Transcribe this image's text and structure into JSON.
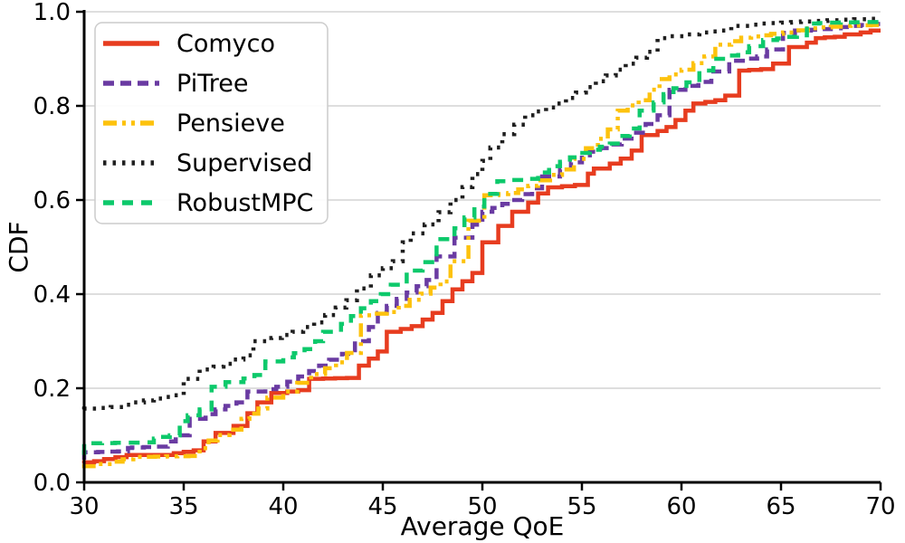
{
  "figure": {
    "background": "#ffffff",
    "grid_color": "#c9c9c9",
    "spine_color": "#000000",
    "legend_border_color": "#cccccc",
    "legend_background": "#ffffff"
  },
  "chart_data": {
    "type": "line",
    "subtype": "empirical_cdf_steps",
    "title": "",
    "xlabel": "Average QoE",
    "ylabel": "CDF",
    "xlim": [
      30,
      70
    ],
    "ylim": [
      0.0,
      1.0
    ],
    "x_ticks": [
      30,
      35,
      40,
      45,
      50,
      55,
      60,
      65,
      70
    ],
    "y_ticks": [
      "0.0",
      "0.2",
      "0.4",
      "0.6",
      "0.8",
      "1.0"
    ],
    "grid": "horizontal",
    "legend_position": "upper-left",
    "dash_patterns": {
      "solid": "",
      "dashed": "12 7",
      "dashdotdot": "15 6 4 6 4 6",
      "dotted": "3.5 7",
      "dashed_long": "12 9"
    },
    "series": [
      {
        "name": "Comyco",
        "color": "#e73c1f",
        "dash": "solid",
        "width": 4.5,
        "points": [
          [
            30,
            0.04
          ],
          [
            31,
            0.045
          ],
          [
            32.7,
            0.058
          ],
          [
            34.5,
            0.058
          ],
          [
            35,
            0.062
          ],
          [
            36,
            0.068
          ],
          [
            36.6,
            0.087
          ],
          [
            37.5,
            0.105
          ],
          [
            38.2,
            0.12
          ],
          [
            38.7,
            0.147
          ],
          [
            39.4,
            0.17
          ],
          [
            40.2,
            0.19
          ],
          [
            41.3,
            0.196
          ],
          [
            42,
            0.22
          ],
          [
            43.8,
            0.222
          ],
          [
            44.3,
            0.248
          ],
          [
            45.2,
            0.278
          ],
          [
            45.9,
            0.32
          ],
          [
            47,
            0.332
          ],
          [
            48,
            0.36
          ],
          [
            49,
            0.41
          ],
          [
            50,
            0.445
          ],
          [
            50.8,
            0.51
          ],
          [
            51.5,
            0.545
          ],
          [
            52.3,
            0.575
          ],
          [
            53.3,
            0.614
          ],
          [
            54,
            0.627
          ],
          [
            55.3,
            0.632
          ],
          [
            55.6,
            0.656
          ],
          [
            56.4,
            0.667
          ],
          [
            57.5,
            0.688
          ],
          [
            58,
            0.705
          ],
          [
            58.8,
            0.738
          ],
          [
            59.7,
            0.755
          ],
          [
            60.2,
            0.77
          ],
          [
            60.6,
            0.79
          ],
          [
            61.2,
            0.805
          ],
          [
            62.2,
            0.812
          ],
          [
            62.9,
            0.822
          ],
          [
            63.4,
            0.875
          ],
          [
            64.6,
            0.878
          ],
          [
            65.4,
            0.89
          ],
          [
            66.3,
            0.925
          ],
          [
            67.2,
            0.944
          ],
          [
            68.2,
            0.947
          ],
          [
            69,
            0.952
          ],
          [
            70,
            0.96
          ]
        ]
      },
      {
        "name": "PiTree",
        "color": "#6a3ba2",
        "dash": "dashed",
        "width": 4.5,
        "points": [
          [
            30,
            0.048
          ],
          [
            30.7,
            0.064
          ],
          [
            32.2,
            0.066
          ],
          [
            32.4,
            0.073
          ],
          [
            34.2,
            0.076
          ],
          [
            34.6,
            0.087
          ],
          [
            35.3,
            0.1
          ],
          [
            36.1,
            0.135
          ],
          [
            37.1,
            0.155
          ],
          [
            38.2,
            0.17
          ],
          [
            39.1,
            0.193
          ],
          [
            40.2,
            0.203
          ],
          [
            41.3,
            0.225
          ],
          [
            42.3,
            0.248
          ],
          [
            43.6,
            0.273
          ],
          [
            44.3,
            0.3
          ],
          [
            45.2,
            0.36
          ],
          [
            46.2,
            0.39
          ],
          [
            47.7,
            0.43
          ],
          [
            48.6,
            0.48
          ],
          [
            49.5,
            0.52
          ],
          [
            50.5,
            0.575
          ],
          [
            52,
            0.6
          ],
          [
            53,
            0.625
          ],
          [
            53.9,
            0.65
          ],
          [
            55,
            0.68
          ],
          [
            55.4,
            0.695
          ],
          [
            57,
            0.718
          ],
          [
            58.2,
            0.743
          ],
          [
            59.4,
            0.78
          ],
          [
            60.2,
            0.834
          ],
          [
            61.5,
            0.851
          ],
          [
            62.4,
            0.873
          ],
          [
            63.3,
            0.896
          ],
          [
            64.3,
            0.905
          ],
          [
            65.1,
            0.92
          ],
          [
            65.7,
            0.955
          ],
          [
            66.5,
            0.96
          ],
          [
            68,
            0.965
          ],
          [
            69,
            0.97
          ],
          [
            70,
            0.974
          ]
        ]
      },
      {
        "name": "Pensieve",
        "color": "#fdc20d",
        "dash": "dashdotdot",
        "width": 4.5,
        "points": [
          [
            30,
            0.03
          ],
          [
            31.4,
            0.039
          ],
          [
            33,
            0.054
          ],
          [
            35.8,
            0.056
          ],
          [
            36.7,
            0.089
          ],
          [
            37.9,
            0.112
          ],
          [
            38.3,
            0.135
          ],
          [
            39.2,
            0.157
          ],
          [
            40,
            0.18
          ],
          [
            40.7,
            0.193
          ],
          [
            42.1,
            0.23
          ],
          [
            43.2,
            0.255
          ],
          [
            43.9,
            0.275
          ],
          [
            44.6,
            0.355
          ],
          [
            45.8,
            0.362
          ],
          [
            46.9,
            0.388
          ],
          [
            48.4,
            0.427
          ],
          [
            49.3,
            0.47
          ],
          [
            50.1,
            0.556
          ],
          [
            50.8,
            0.61
          ],
          [
            51.8,
            0.615
          ],
          [
            52.8,
            0.63
          ],
          [
            54.6,
            0.665
          ],
          [
            55.8,
            0.71
          ],
          [
            56.8,
            0.75
          ],
          [
            57.3,
            0.79
          ],
          [
            58.4,
            0.812
          ],
          [
            59.4,
            0.857
          ],
          [
            60.6,
            0.877
          ],
          [
            61.7,
            0.905
          ],
          [
            62.5,
            0.93
          ],
          [
            63.5,
            0.945
          ],
          [
            64.5,
            0.95
          ],
          [
            65.7,
            0.956
          ],
          [
            67,
            0.965
          ],
          [
            68.5,
            0.97
          ],
          [
            70,
            0.972
          ]
        ]
      },
      {
        "name": "Supervised",
        "color": "#1f1f1f",
        "dash": "dotted",
        "width": 4.5,
        "points": [
          [
            30,
            0.155
          ],
          [
            32,
            0.16
          ],
          [
            33,
            0.17
          ],
          [
            34,
            0.178
          ],
          [
            35,
            0.185
          ],
          [
            35.8,
            0.22
          ],
          [
            36.5,
            0.24
          ],
          [
            37.5,
            0.252
          ],
          [
            38.5,
            0.27
          ],
          [
            39.4,
            0.3
          ],
          [
            41,
            0.32
          ],
          [
            42.1,
            0.34
          ],
          [
            43.7,
            0.387
          ],
          [
            44.4,
            0.412
          ],
          [
            45,
            0.44
          ],
          [
            46,
            0.47
          ],
          [
            46.4,
            0.51
          ],
          [
            47.8,
            0.548
          ],
          [
            49,
            0.6
          ],
          [
            50,
            0.655
          ],
          [
            50.4,
            0.683
          ],
          [
            51.6,
            0.74
          ],
          [
            52.7,
            0.78
          ],
          [
            54.2,
            0.805
          ],
          [
            55.7,
            0.84
          ],
          [
            57.2,
            0.877
          ],
          [
            58.8,
            0.915
          ],
          [
            59.4,
            0.944
          ],
          [
            60.3,
            0.948
          ],
          [
            61.5,
            0.956
          ],
          [
            62.5,
            0.96
          ],
          [
            63.4,
            0.97
          ],
          [
            64.5,
            0.975
          ],
          [
            66,
            0.978
          ],
          [
            68,
            0.982
          ],
          [
            70,
            0.985
          ]
        ]
      },
      {
        "name": "RobustMPC",
        "color": "#0dc96b",
        "dash": "dashed_long",
        "width": 4.5,
        "points": [
          [
            30,
            0.058
          ],
          [
            30.9,
            0.083
          ],
          [
            33.5,
            0.085
          ],
          [
            33.8,
            0.093
          ],
          [
            34.8,
            0.1
          ],
          [
            35.2,
            0.13
          ],
          [
            36.4,
            0.155
          ],
          [
            37.1,
            0.203
          ],
          [
            38,
            0.213
          ],
          [
            39.1,
            0.228
          ],
          [
            40,
            0.257
          ],
          [
            41.6,
            0.283
          ],
          [
            42,
            0.3
          ],
          [
            42.9,
            0.32
          ],
          [
            44.4,
            0.37
          ],
          [
            45.4,
            0.4
          ],
          [
            46.2,
            0.42
          ],
          [
            47,
            0.45
          ],
          [
            47.7,
            0.468
          ],
          [
            48.6,
            0.517
          ],
          [
            50.1,
            0.586
          ],
          [
            51.4,
            0.64
          ],
          [
            52.8,
            0.645
          ],
          [
            53.9,
            0.672
          ],
          [
            55.4,
            0.7
          ],
          [
            56.9,
            0.72
          ],
          [
            57.9,
            0.752
          ],
          [
            58.6,
            0.79
          ],
          [
            59.6,
            0.825
          ],
          [
            60.9,
            0.85
          ],
          [
            62.3,
            0.9
          ],
          [
            63.4,
            0.914
          ],
          [
            64.8,
            0.94
          ],
          [
            66.3,
            0.95
          ],
          [
            66.9,
            0.975
          ],
          [
            68,
            0.977
          ],
          [
            70,
            0.978
          ]
        ]
      }
    ]
  }
}
